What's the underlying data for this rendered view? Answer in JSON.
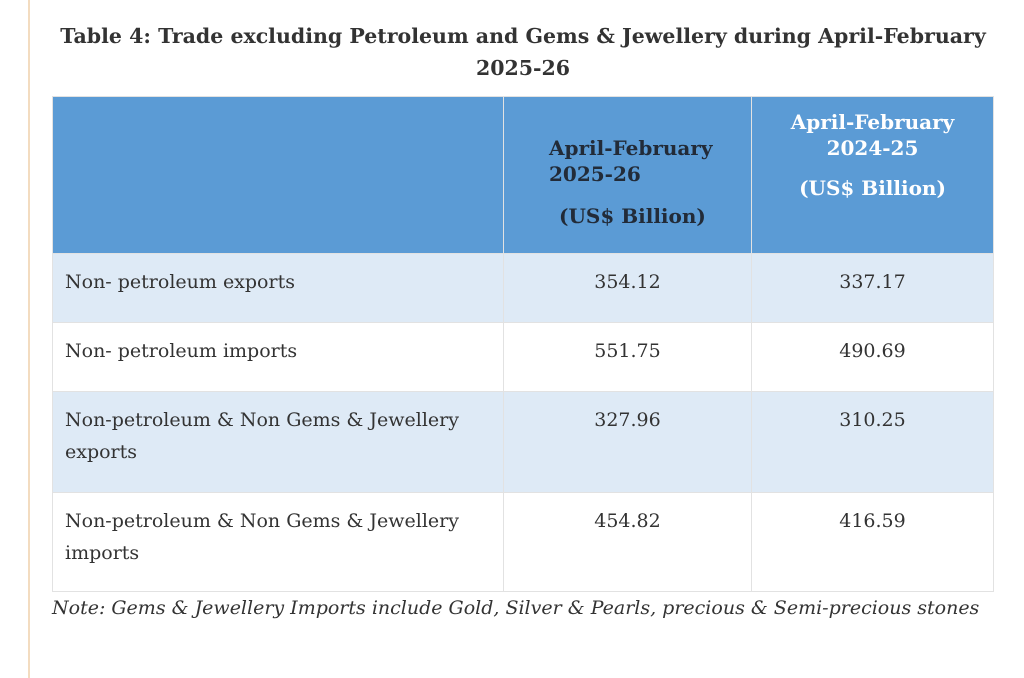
{
  "title": "Table 4: Trade excluding Petroleum and Gems & Jewellery during April-February 2025-26",
  "colors": {
    "header_bg": "#5b9bd5",
    "alt_row_bg": "#deeaf6"
  },
  "table": {
    "headers": [
      {
        "label": "",
        "unit": ""
      },
      {
        "label": "April-February 2025-26",
        "unit": "(US$ Billion)"
      },
      {
        "label": "April-February 2024-25",
        "unit": "(US$ Billion)"
      }
    ],
    "rows": [
      {
        "label": "Non- petroleum exports",
        "v1": "354.12",
        "v2": "337.17"
      },
      {
        "label": "Non- petroleum imports",
        "v1": "551.75",
        "v2": "490.69"
      },
      {
        "label": "Non-petroleum & Non Gems & Jewellery exports",
        "v1": "327.96",
        "v2": "310.25"
      },
      {
        "label": "Non-petroleum & Non Gems & Jewellery imports",
        "v1": "454.82",
        "v2": "416.59"
      }
    ]
  },
  "note": "Note: Gems & Jewellery Imports include Gold, Silver & Pearls, precious & Semi-precious stones"
}
